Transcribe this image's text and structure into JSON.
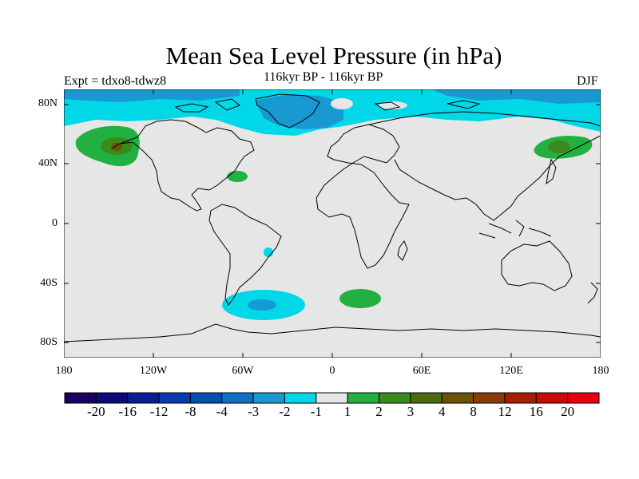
{
  "title": "Mean Sea Level Pressure (in hPa)",
  "subtitle": "116kyr BP - 116kyr BP",
  "experiment": "Expt = tdxo8-tdwz8",
  "season": "DJF",
  "lat_labels": [
    "80N",
    "40N",
    "0",
    "40S",
    "80S"
  ],
  "lon_labels": [
    "180",
    "120W",
    "60W",
    "0",
    "60E",
    "120E",
    "180"
  ],
  "colorbar": {
    "colors": [
      "#1a0060",
      "#0a0a7a",
      "#0a1f96",
      "#0a3ab0",
      "#0050b4",
      "#1070c8",
      "#1899d2",
      "#00d8e8",
      "#e6e6e6",
      "#22b040",
      "#3a8a1c",
      "#4c6a10",
      "#6a5208",
      "#8a3c06",
      "#a81e04",
      "#c80c04",
      "#e80010"
    ],
    "labels": [
      "-20",
      "-16",
      "-12",
      "-8",
      "-4",
      "-3",
      "-2",
      "-1",
      "1",
      "2",
      "3",
      "4",
      "8",
      "12",
      "16",
      "20"
    ]
  },
  "colors": {
    "background": "#e6e6e6",
    "cyan": "#00d8e8",
    "light_blue": "#1899d2",
    "green": "#22b040",
    "dark_green": "#3a8a1c",
    "olive": "#6a5208"
  }
}
